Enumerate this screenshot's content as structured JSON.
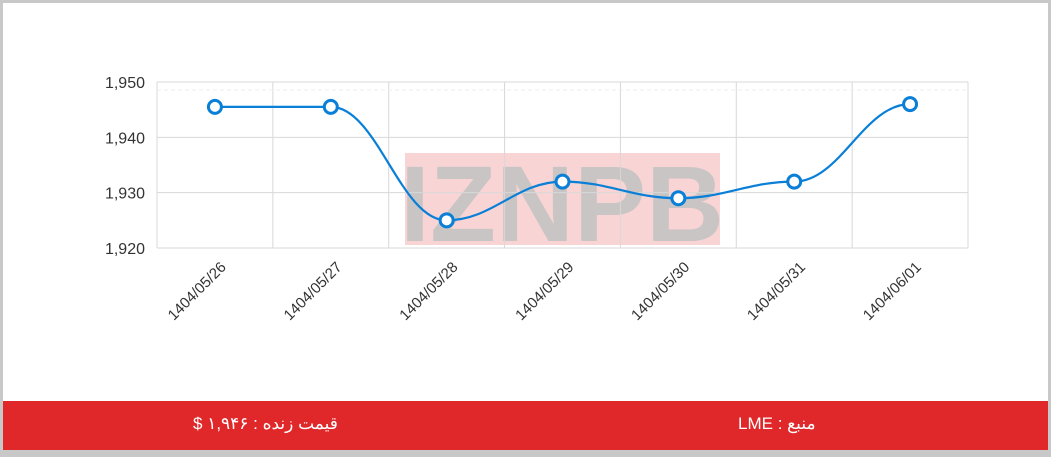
{
  "chart_data": {
    "type": "line",
    "categories": [
      "1404/05/26",
      "1404/05/27",
      "1404/05/28",
      "1404/05/29",
      "1404/05/30",
      "1404/05/31",
      "1404/06/01"
    ],
    "series": [
      {
        "values": [
          1945.5,
          1945.5,
          1925,
          1932,
          1929,
          1932,
          1946
        ],
        "color": "#0a7fd8"
      }
    ],
    "ylim": [
      1920,
      1950
    ],
    "yticks": [
      1920,
      1930,
      1940,
      1950
    ],
    "ytick_labels": [
      "1,920",
      "1,930",
      "1,940",
      "1,950"
    ],
    "grid": true,
    "smooth": true,
    "watermark": "IZNPB"
  },
  "footer": {
    "live_price": "قیمت زنده : ۱,۹۴۶ $",
    "source": "منبع : LME",
    "color": "#e0282a"
  }
}
